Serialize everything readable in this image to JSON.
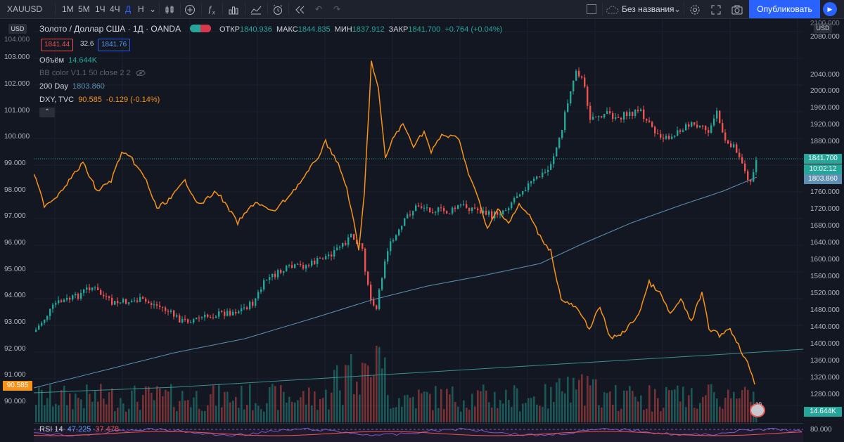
{
  "toolbar": {
    "symbol": "XAUUSD",
    "intervals": [
      "1М",
      "5М",
      "1Ч",
      "4Ч",
      "Д",
      "Н"
    ],
    "active_interval": "Д",
    "layout_name": "Без названия",
    "publish_label": "Опубликовать"
  },
  "legend": {
    "title": "Золото / Доллар США · 1Д · OANDA",
    "open_label": "ОТКР",
    "open_value": "1840.936",
    "high_label": "МАКС",
    "high_value": "1844.835",
    "low_label": "МИН",
    "low_value": "1837.912",
    "close_label": "ЗАКР",
    "close_value": "1841.700",
    "change": "+0.764 (+0.04%)",
    "bid": "1841.44",
    "spread": "32.6",
    "ask": "1841.76",
    "volume_label": "Объём",
    "volume_value": "14.644K",
    "bb_label": "BB color V1.1 50 close 2 2",
    "ma_label": "200 Day",
    "ma_value": "1803.860",
    "dxy_label": "DXY, TVC",
    "dxy_value": "90.585",
    "dxy_change": "-0.129 (-0.14%)"
  },
  "rsi": {
    "label": "RSI 14",
    "value1": "47.225",
    "value2": "37.478",
    "level": "80.000"
  },
  "axes": {
    "left_currency": "USD",
    "right_currency": "USD",
    "left_ticks": [
      "103.000",
      "102.000",
      "101.000",
      "100.000",
      "99.000",
      "98.000",
      "97.000",
      "96.000",
      "95.000",
      "94.000",
      "93.000",
      "92.000",
      "91.000",
      "90.000"
    ],
    "right_ticks": [
      "2100.000",
      "2080.000",
      "2040.000",
      "2000.000",
      "1960.000",
      "1920.000",
      "1880.000",
      "1840.000",
      "1800.000",
      "1760.000",
      "1720.000",
      "1680.000",
      "1640.000",
      "1600.000",
      "1560.000",
      "1520.000",
      "1480.000",
      "1440.000",
      "1400.000",
      "1360.000",
      "1320.000",
      "1280.000",
      "1240.000"
    ],
    "left_top_cut": "104.000"
  },
  "price_tags": {
    "last_price": "1841.700",
    "countdown": "10:02:12",
    "ma_price": "1803.860",
    "volume_tag": "14.644K",
    "dxy_left": "90.585"
  },
  "colors": {
    "background": "#131722",
    "up": "#26a69a",
    "down": "#ef5350",
    "dxy_line": "#f7931a",
    "ma_line": "#5d8fb2",
    "accent": "#2962ff"
  },
  "icons": [
    "candles-icon",
    "add-indicator-icon",
    "fx-icon",
    "bars-icon",
    "compare-icon",
    "alert-icon",
    "replay-icon",
    "undo-icon",
    "redo-icon",
    "settings-icon",
    "fullscreen-icon",
    "camera-icon",
    "cloud-icon",
    "play-icon"
  ]
}
